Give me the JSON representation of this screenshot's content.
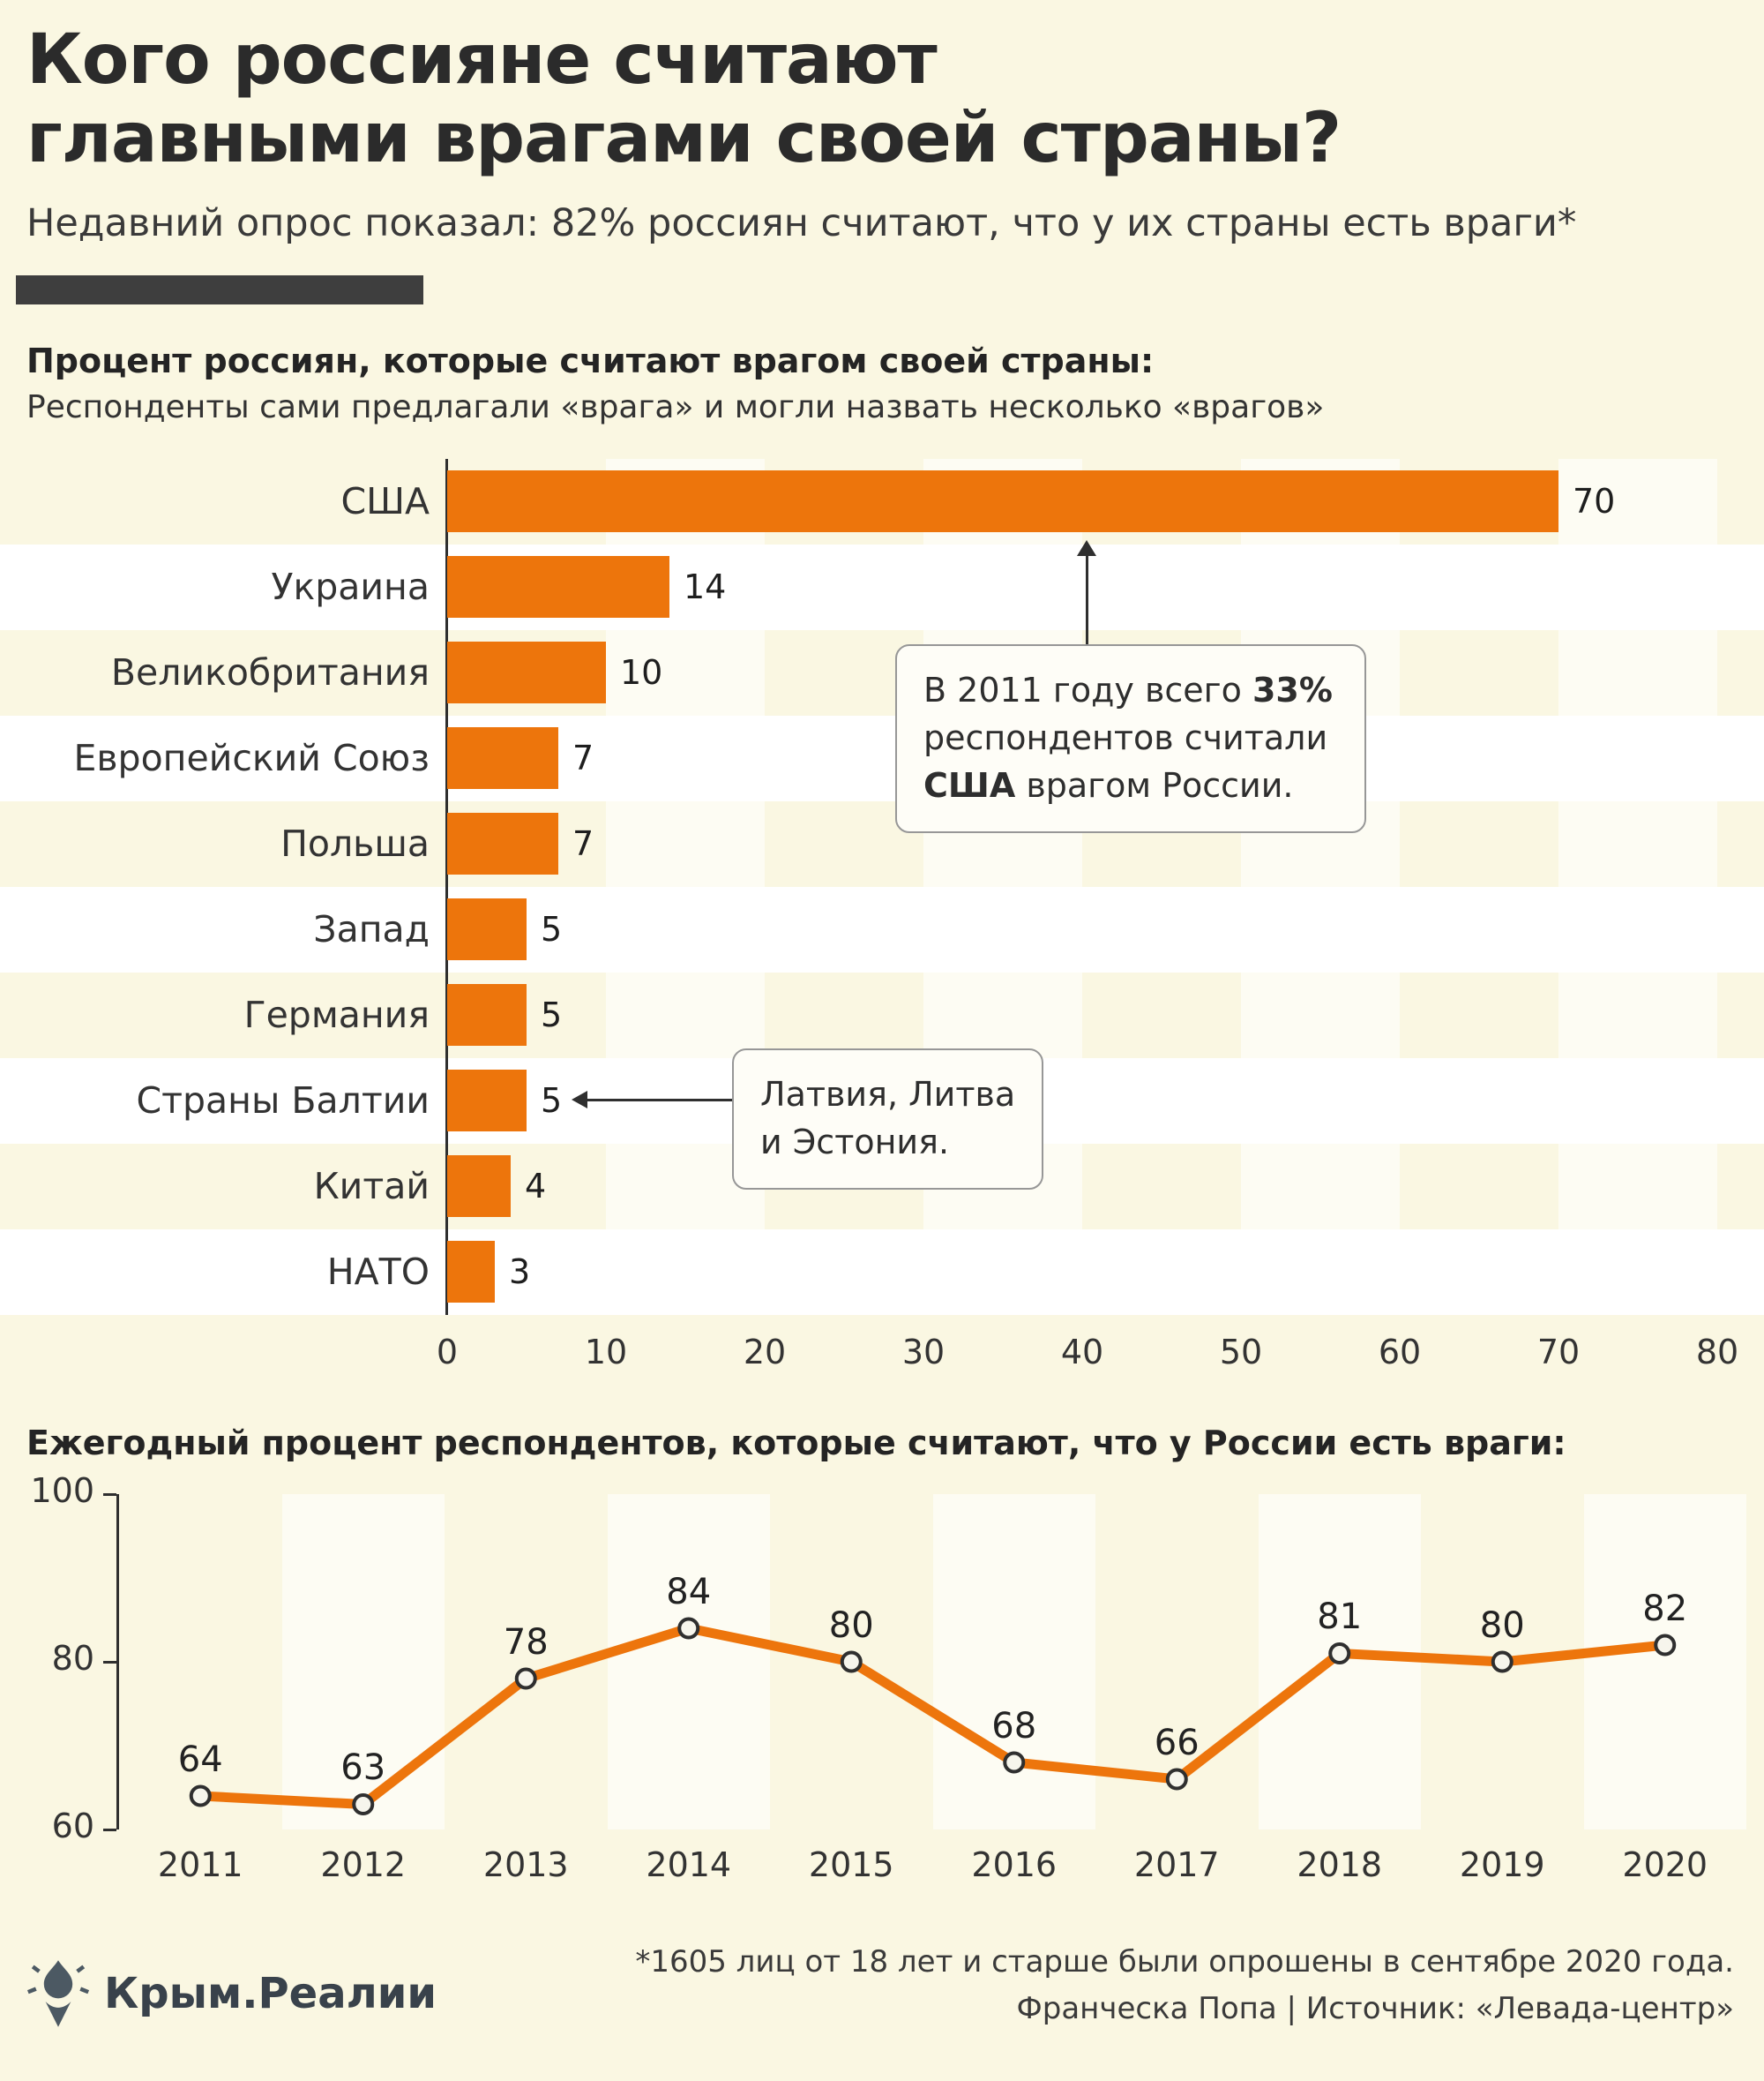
{
  "page": {
    "title_line1": "Кого россияне считают",
    "title_line2": "главными врагами своей страны?",
    "subtitle": "Недавний опрос показал: 82% россиян считают, что у их страны есть враги*"
  },
  "colors": {
    "background": "#FAF7E2",
    "accent_orange": "#ED750C",
    "ink": "#2F2F2F",
    "stripe_white": "#FFFFFF",
    "divider_dark": "#3E3E3E",
    "point_fill": "#F6F5EC",
    "callout_border": "#979797",
    "callout_bg": "#FEFDF7",
    "logo_slate": "#4C5963"
  },
  "bar_section": {
    "heading": "Процент россиян, которые считают врагом своей страны:",
    "note": "Респонденты сами предлагали «врага» и могли назвать несколько «врагов»"
  },
  "line_section": {
    "heading": "Ежегодный процент респондентов, которые считают, что у России есть враги:"
  },
  "footer": {
    "brand": "Крым.Реалии",
    "footnote_line1": "*1605 лиц от 18 лет и старше были опрошены в сентябре 2020 года.",
    "footnote_line2": "Франческа Попа | Источник: «Левада-центр»"
  },
  "chart_data": [
    {
      "type": "bar",
      "orientation": "horizontal",
      "title": "Процент россиян, которые считают врагом своей страны:",
      "categories": [
        "США",
        "Украина",
        "Великобритания",
        "Европейский Союз",
        "Польша",
        "Запад",
        "Германия",
        "Страны Балтии",
        "Китай",
        "НАТО"
      ],
      "values": [
        70,
        14,
        10,
        7,
        7,
        5,
        5,
        5,
        4,
        3
      ],
      "xlim": [
        0,
        80
      ],
      "x_ticks": [
        0,
        10,
        20,
        30,
        40,
        50,
        60,
        70,
        80
      ],
      "bar_color": "#ED750C",
      "annotations": {
        "usa_2011": {
          "segments": [
            {
              "text": "В 2011 году всего ",
              "bold": false
            },
            {
              "text": "33%",
              "bold": true
            },
            {
              "text": " респондентов считали ",
              "bold": false
            },
            {
              "text": "США",
              "bold": true
            },
            {
              "text": " врагом России.",
              "bold": false
            }
          ],
          "points_to": "США"
        },
        "baltics": {
          "lines": [
            "Латвия, Литва",
            "и Эстония."
          ],
          "points_to": "Страны Балтии"
        }
      }
    },
    {
      "type": "line",
      "title": "Ежегодный процент респондентов, которые считают, что у России есть враги:",
      "categories": [
        "2011",
        "2012",
        "2013",
        "2014",
        "2015",
        "2016",
        "2017",
        "2018",
        "2019",
        "2020"
      ],
      "values": [
        64,
        63,
        78,
        84,
        80,
        68,
        66,
        81,
        80,
        82
      ],
      "ylim": [
        60,
        100
      ],
      "y_ticks": [
        100,
        80,
        60
      ],
      "line_color": "#ED750C",
      "grid": "striped-columns",
      "legend": "none"
    }
  ]
}
